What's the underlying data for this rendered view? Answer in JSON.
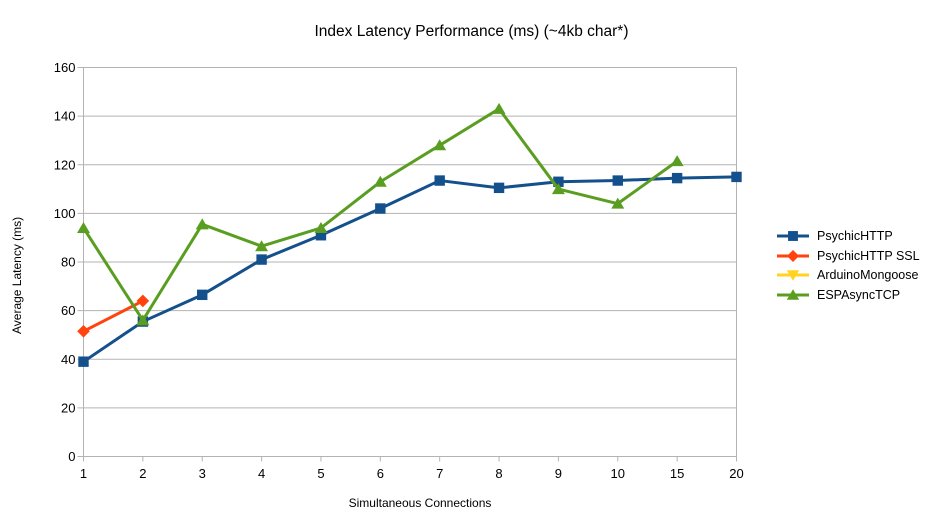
{
  "title": "Index Latency Performance (ms) (~4kb char*)",
  "chart_data": {
    "type": "line",
    "title": "Index Latency Performance (ms) (~4kb char*)",
    "xlabel": "Simultaneous Connections",
    "ylabel": "Average Latency (ms)",
    "categories": [
      "1",
      "2",
      "3",
      "4",
      "5",
      "6",
      "7",
      "8",
      "9",
      "10",
      "15",
      "20"
    ],
    "ylim": [
      0,
      160
    ],
    "ytick_step": 20,
    "grid": "horizontal",
    "legend_position": "right",
    "series": [
      {
        "name": "PsychicHTTP",
        "color": "#14508c",
        "marker": "square",
        "values": [
          39,
          55.5,
          66.5,
          81,
          91,
          102,
          113.5,
          110.5,
          113,
          113.5,
          114.5,
          115
        ]
      },
      {
        "name": "PsychicHTTP SSL",
        "color": "#ff420e",
        "marker": "diamond",
        "values": [
          51.5,
          64,
          null,
          null,
          null,
          null,
          null,
          null,
          null,
          null,
          null,
          null
        ]
      },
      {
        "name": "ArduinoMongoose",
        "color": "#ffd320",
        "marker": "triangle-down",
        "values": [
          null,
          null,
          null,
          null,
          null,
          null,
          null,
          null,
          null,
          null,
          null,
          null
        ]
      },
      {
        "name": "ESPAsyncTCP",
        "color": "#5a9e21",
        "marker": "triangle-up",
        "values": [
          94,
          56,
          95.5,
          86.5,
          94,
          113,
          128,
          143,
          110,
          104,
          121.5,
          null
        ]
      }
    ]
  },
  "colors": {
    "grid": "#b3b3b3",
    "axis": "#b3b3b3",
    "text": "#000000",
    "background": "#ffffff"
  }
}
